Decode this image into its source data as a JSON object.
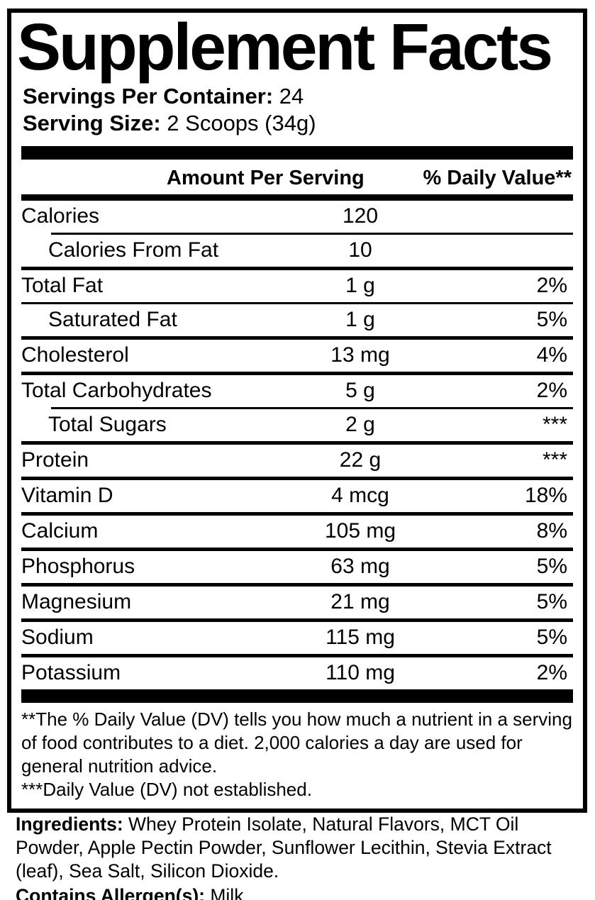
{
  "colors": {
    "text": "#000000",
    "background": "#ffffff"
  },
  "title": "Supplement Facts",
  "serving_info": {
    "servings_per_container_label": "Servings Per Container:",
    "servings_per_container_value": " 24",
    "serving_size_label": "Serving Size:",
    "serving_size_value": " 2 Scoops (34g)"
  },
  "table": {
    "headers": {
      "amount": "Amount Per Serving",
      "dv": "% Daily Value**"
    },
    "rows": [
      {
        "name": "Calories",
        "amount": "120",
        "dv": "",
        "indent": false,
        "divider": "none"
      },
      {
        "name": "Calories From Fat",
        "amount": "10",
        "dv": "",
        "indent": true,
        "divider": "indent-thin"
      },
      {
        "name": "Total Fat",
        "amount": "1 g",
        "dv": "2%",
        "indent": false,
        "divider": "medium"
      },
      {
        "name": "Saturated Fat",
        "amount": "1 g",
        "dv": "5%",
        "indent": true,
        "divider": "thin"
      },
      {
        "name": "Cholesterol",
        "amount": "13 mg",
        "dv": "4%",
        "indent": false,
        "divider": "medium"
      },
      {
        "name": "Total Carbohydrates",
        "amount": "5 g",
        "dv": "2%",
        "indent": false,
        "divider": "medium"
      },
      {
        "name": "Total Sugars",
        "amount": "2 g",
        "dv": "***",
        "indent": true,
        "divider": "indent-thin"
      },
      {
        "name": "Protein",
        "amount": "22 g",
        "dv": "***",
        "indent": false,
        "divider": "medium"
      },
      {
        "name": "Vitamin D",
        "amount": "4 mcg",
        "dv": "18%",
        "indent": false,
        "divider": "medium"
      },
      {
        "name": "Calcium",
        "amount": "105 mg",
        "dv": "8%",
        "indent": false,
        "divider": "medium"
      },
      {
        "name": "Phosphorus",
        "amount": "63 mg",
        "dv": "5%",
        "indent": false,
        "divider": "medium"
      },
      {
        "name": "Magnesium",
        "amount": "21 mg",
        "dv": "5%",
        "indent": false,
        "divider": "medium"
      },
      {
        "name": "Sodium",
        "amount": "115 mg",
        "dv": "5%",
        "indent": false,
        "divider": "medium"
      },
      {
        "name": "Potassium",
        "amount": "110 mg",
        "dv": "2%",
        "indent": false,
        "divider": "medium"
      }
    ]
  },
  "footnotes": {
    "dv_explanation": "**The % Daily Value (DV) tells you how much a nutrient in a serving of food contributes to a diet. 2,000 calories a day are used for general nutrition advice.",
    "not_established": "***Daily Value (DV) not established."
  },
  "ingredients": {
    "label": "Ingredients:",
    "text": " Whey Protein Isolate, Natural Flavors, MCT Oil Powder, Apple Pectin Powder, Sunflower Lecithin, Stevia Extract (leaf), Sea Salt, Silicon Dioxide."
  },
  "allergens": {
    "label": "Contains Allergen(s):",
    "value": " Milk"
  }
}
